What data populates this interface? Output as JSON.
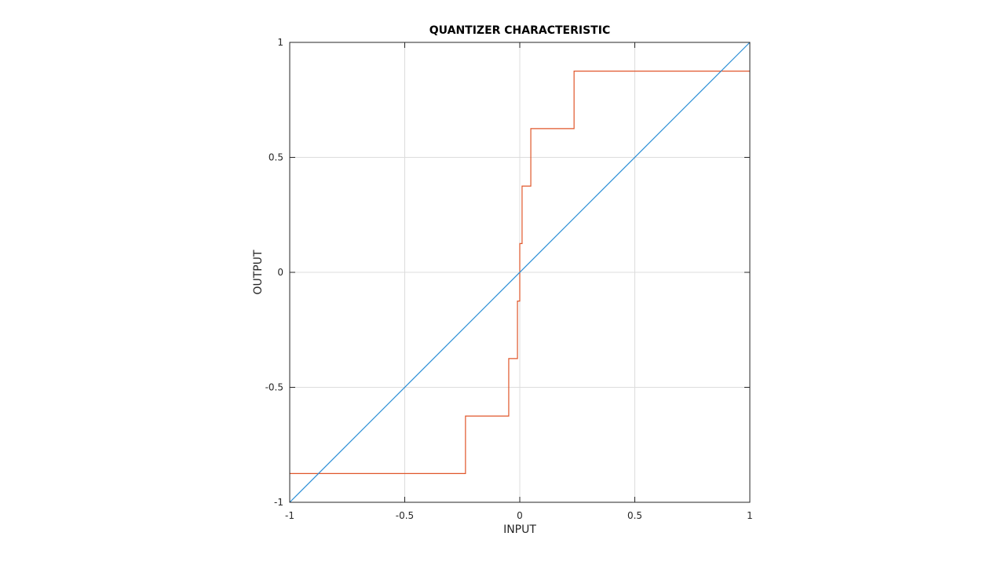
{
  "chart_data": {
    "type": "line",
    "title": "QUANTIZER CHARACTERISTIC",
    "xlabel": "INPUT",
    "ylabel": "OUTPUT",
    "xlim": [
      -1,
      1
    ],
    "ylim": [
      -1,
      1
    ],
    "grid": true,
    "x_ticks": [
      -1,
      -0.5,
      0,
      0.5,
      1
    ],
    "x_tick_labels": [
      "-1",
      "-0.5",
      "0",
      "0.5",
      "1"
    ],
    "y_ticks": [
      -1,
      -0.5,
      0,
      0.5,
      1
    ],
    "y_tick_labels": [
      "-1",
      "-0.5",
      "0",
      "0.5",
      "1"
    ],
    "series": [
      {
        "color": "#e0562a",
        "style": "step",
        "x": [
          -1,
          -0.236,
          -0.236,
          -0.048,
          -0.048,
          -0.01,
          -0.01,
          0,
          0,
          0.01,
          0.01,
          0.048,
          0.048,
          0.236,
          0.236,
          1
        ],
        "y": [
          -0.875,
          -0.875,
          -0.625,
          -0.625,
          -0.375,
          -0.375,
          -0.125,
          -0.125,
          0.125,
          0.125,
          0.375,
          0.375,
          0.625,
          0.625,
          0.875,
          0.875
        ]
      },
      {
        "color": "#2c8fd6",
        "style": "line",
        "x": [
          -1,
          1
        ],
        "y": [
          -1,
          1
        ]
      }
    ]
  }
}
